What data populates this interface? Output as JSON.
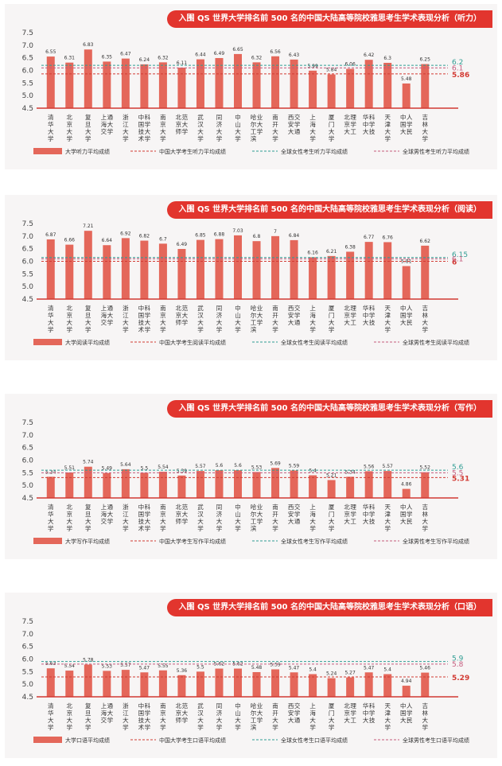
{
  "chart_data": [
    {
      "type": "bar",
      "title": "入围 QS 世界大学排名前 500 名的中国大陆高等院校雅思考生学术表现分析（听力）",
      "categories": [
        "清华大学",
        "北京大学",
        "复旦大学",
        "上海交通大学",
        "浙江大学",
        "中国科学技术大学",
        "南京大学",
        "北京师范大学",
        "武汉大学",
        "同济大学",
        "中山大学",
        "哈尔滨工业大学",
        "南开大学",
        "西安交通大学",
        "上海大学",
        "厦门大学",
        "北京理工大学",
        "华中科技大学",
        "天津大学",
        "中国人民大学",
        "吉林大学"
      ],
      "category_chars": [
        [
          "清",
          "华",
          "大",
          "学"
        ],
        [
          "北",
          "京",
          "大",
          "学"
        ],
        [
          "复",
          "旦",
          "大",
          "学"
        ],
        [
          "上",
          "海",
          "交",
          "通",
          "大",
          "学"
        ],
        [
          "浙",
          "江",
          "大",
          "学"
        ],
        [
          "中",
          "国",
          "技",
          "术",
          "科",
          "学",
          "大",
          "学"
        ],
        [
          "南",
          "京",
          "大",
          "学"
        ],
        [
          "北",
          "京",
          "师",
          "范",
          "大",
          "学"
        ],
        [
          "武",
          "汉",
          "大",
          "学"
        ],
        [
          "同",
          "济",
          "大",
          "学"
        ],
        [
          "中",
          "山",
          "大",
          "学"
        ],
        [
          "哈",
          "尔",
          "工",
          "滨",
          "业",
          "大",
          "学"
        ],
        [
          "南",
          "开",
          "大",
          "学"
        ],
        [
          "西",
          "安",
          "大",
          "交",
          "学",
          "通"
        ],
        [
          "上",
          "海",
          "大",
          "学"
        ],
        [
          "厦",
          "门",
          "大",
          "学"
        ],
        [
          "北",
          "京",
          "大",
          "理",
          "学",
          "工"
        ],
        [
          "华",
          "中",
          "大",
          "科",
          "学",
          "技"
        ],
        [
          "天",
          "津",
          "大",
          "学"
        ],
        [
          "中",
          "国",
          "大",
          "人",
          "学",
          "民"
        ],
        [
          "吉",
          "林",
          "大",
          "学"
        ]
      ],
      "series": [
        {
          "name": "大学听力平均成绩",
          "values": [
            6.55,
            6.31,
            6.83,
            6.35,
            6.47,
            6.24,
            6.32,
            6.11,
            6.44,
            6.49,
            6.65,
            6.32,
            6.56,
            6.43,
            5.99,
            5.84,
            6.06,
            6.42,
            6.3,
            5.48,
            6.25
          ]
        }
      ],
      "value_labels": [
        "6.55",
        "6.31",
        "6.83",
        "6.35",
        "6.47",
        "6.24",
        "6.32",
        "6.11",
        "6.44",
        "6.49",
        "6.65",
        "6.32",
        "6.56",
        "6.43",
        "5.99",
        "5.84",
        "6.06",
        "6.42",
        "6.3",
        "5.48",
        "6.25"
      ],
      "yticks": [
        "4.5",
        "5.0",
        "5.5",
        "6.0",
        "6.5",
        "7.0",
        "7.5"
      ],
      "ylim": [
        4.5,
        7.5
      ],
      "reference_lines": [
        {
          "name": "中国大学考生听力平均成绩",
          "value": 5.86,
          "label": "5.86",
          "color": "#d23a33"
        },
        {
          "name": "全球女性考生听力平均成绩",
          "value": 6.2,
          "label": "6.2",
          "color": "#2f9d93"
        },
        {
          "name": "全球男性考生听力平均成绩",
          "value": 6.1,
          "label": "6.1",
          "color": "#c45a7c"
        }
      ],
      "bar_color": "#e4675a",
      "axis_color": "#d23a33",
      "grid": false,
      "legend_position": "bottom"
    },
    {
      "type": "bar",
      "title": "入围 QS 世界大学排名前 500 名的中国大陆高等院校雅思考生学术表现分析（阅读）",
      "categories": [
        "清华大学",
        "北京大学",
        "复旦大学",
        "上海交通大学",
        "浙江大学",
        "中国科学技术大学",
        "南京大学",
        "北京师范大学",
        "武汉大学",
        "同济大学",
        "中山大学",
        "哈尔滨工业大学",
        "南开大学",
        "西安交通大学",
        "上海大学",
        "厦门大学",
        "北京理工大学",
        "华中科技大学",
        "天津大学",
        "中国人民大学",
        "吉林大学"
      ],
      "category_chars": [
        [
          "清",
          "华",
          "大",
          "学"
        ],
        [
          "北",
          "京",
          "大",
          "学"
        ],
        [
          "复",
          "旦",
          "大",
          "学"
        ],
        [
          "上",
          "海",
          "交",
          "通",
          "大",
          "学"
        ],
        [
          "浙",
          "江",
          "大",
          "学"
        ],
        [
          "中",
          "国",
          "技",
          "术",
          "科",
          "学",
          "大",
          "学"
        ],
        [
          "南",
          "京",
          "大",
          "学"
        ],
        [
          "北",
          "京",
          "师",
          "范",
          "大",
          "学"
        ],
        [
          "武",
          "汉",
          "大",
          "学"
        ],
        [
          "同",
          "济",
          "大",
          "学"
        ],
        [
          "中",
          "山",
          "大",
          "学"
        ],
        [
          "哈",
          "尔",
          "工",
          "滨",
          "业",
          "大",
          "学"
        ],
        [
          "南",
          "开",
          "大",
          "学"
        ],
        [
          "西",
          "安",
          "大",
          "交",
          "学",
          "通"
        ],
        [
          "上",
          "海",
          "大",
          "学"
        ],
        [
          "厦",
          "门",
          "大",
          "学"
        ],
        [
          "北",
          "京",
          "大",
          "理",
          "学",
          "工"
        ],
        [
          "华",
          "中",
          "大",
          "科",
          "学",
          "技"
        ],
        [
          "天",
          "津",
          "大",
          "学"
        ],
        [
          "中",
          "国",
          "大",
          "人",
          "学",
          "民"
        ],
        [
          "吉",
          "林",
          "大",
          "学"
        ]
      ],
      "series": [
        {
          "name": "大学阅读平均成绩",
          "values": [
            6.87,
            6.66,
            7.21,
            6.64,
            6.92,
            6.82,
            6.7,
            6.49,
            6.85,
            6.88,
            7.03,
            6.8,
            7,
            6.84,
            6.16,
            6.21,
            6.38,
            6.77,
            6.76,
            5.81,
            6.62
          ]
        }
      ],
      "value_labels": [
        "6.87",
        "6.66",
        "7.21",
        "6.64",
        "6.92",
        "6.82",
        "6.7",
        "6.49",
        "6.85",
        "6.88",
        "7.03",
        "6.8",
        "7",
        "6.84",
        "6.16",
        "6.21",
        "6.38",
        "6.77",
        "6.76",
        "5.81",
        "6.62"
      ],
      "yticks": [
        "4.5",
        "5.0",
        "5.5",
        "6.0",
        "6.5",
        "7.0",
        "7.5"
      ],
      "ylim": [
        4.5,
        7.5
      ],
      "reference_lines": [
        {
          "name": "中国大学考生阅读平均成绩",
          "value": 6,
          "label": "6",
          "color": "#d23a33"
        },
        {
          "name": "全球女性考生阅读平均成绩",
          "value": 6.15,
          "label": "6.15",
          "color": "#2f9d93"
        },
        {
          "name": "全球男性考生阅读平均成绩",
          "value": 6.1,
          "label": "6.1",
          "color": "#c45a7c"
        }
      ],
      "bar_color": "#e4675a",
      "axis_color": "#d23a33",
      "grid": false,
      "legend_position": "bottom"
    },
    {
      "type": "bar",
      "title": "入围 QS 世界大学排名前 500 名的中国大陆高等院校雅思考生学术表现分析（写作）",
      "categories": [
        "清华大学",
        "北京大学",
        "复旦大学",
        "上海交通大学",
        "浙江大学",
        "中国科学技术大学",
        "南京大学",
        "北京师范大学",
        "武汉大学",
        "同济大学",
        "中山大学",
        "哈尔滨工业大学",
        "南开大学",
        "西安交通大学",
        "上海大学",
        "厦门大学",
        "北京理工大学",
        "华中科技大学",
        "天津大学",
        "中国人民大学",
        "吉林大学"
      ],
      "category_chars": [
        [
          "清",
          "华",
          "大",
          "学"
        ],
        [
          "北",
          "京",
          "大",
          "学"
        ],
        [
          "复",
          "旦",
          "大",
          "学"
        ],
        [
          "上",
          "海",
          "交",
          "通",
          "大",
          "学"
        ],
        [
          "浙",
          "江",
          "大",
          "学"
        ],
        [
          "中",
          "国",
          "技",
          "术",
          "科",
          "学",
          "大",
          "学"
        ],
        [
          "南",
          "京",
          "大",
          "学"
        ],
        [
          "北",
          "京",
          "师",
          "范",
          "大",
          "学"
        ],
        [
          "武",
          "汉",
          "大",
          "学"
        ],
        [
          "同",
          "济",
          "大",
          "学"
        ],
        [
          "中",
          "山",
          "大",
          "学"
        ],
        [
          "哈",
          "尔",
          "工",
          "滨",
          "业",
          "大",
          "学"
        ],
        [
          "南",
          "开",
          "大",
          "学"
        ],
        [
          "西",
          "安",
          "大",
          "交",
          "学",
          "通"
        ],
        [
          "上",
          "海",
          "大",
          "学"
        ],
        [
          "厦",
          "门",
          "大",
          "学"
        ],
        [
          "北",
          "京",
          "大",
          "理",
          "学",
          "工"
        ],
        [
          "华",
          "中",
          "大",
          "科",
          "学",
          "技"
        ],
        [
          "天",
          "津",
          "大",
          "学"
        ],
        [
          "中",
          "国",
          "大",
          "人",
          "学",
          "民"
        ],
        [
          "吉",
          "林",
          "大",
          "学"
        ]
      ],
      "series": [
        {
          "name": "大学写作平均成绩",
          "values": [
            5.34,
            5.51,
            5.74,
            5.49,
            5.64,
            5.5,
            5.54,
            5.39,
            5.57,
            5.6,
            5.6,
            5.53,
            5.69,
            5.59,
            5.4,
            5.21,
            5.34,
            5.56,
            5.57,
            4.86,
            5.52
          ]
        }
      ],
      "value_labels": [
        "5.34",
        "5.51",
        "5.74",
        "5.49",
        "5.64",
        "5.5",
        "5.54",
        "5.39",
        "5.57",
        "5.6",
        "5.6",
        "5.53",
        "5.69",
        "5.59",
        "5.4",
        "5.21",
        "5.34",
        "5.56",
        "5.57",
        "4.86",
        "5.52"
      ],
      "yticks": [
        "4.5",
        "5.0",
        "5.5",
        "6.0",
        "6.5",
        "7.0",
        "7.5"
      ],
      "ylim": [
        4.5,
        7.5
      ],
      "reference_lines": [
        {
          "name": "中国大学考生写作平均成绩",
          "value": 5.31,
          "label": "5.31",
          "color": "#d23a33"
        },
        {
          "name": "全球女性考生写作平均成绩",
          "value": 5.6,
          "label": "5.6",
          "color": "#2f9d93"
        },
        {
          "name": "全球男性考生写作平均成绩",
          "value": 5.5,
          "label": "5.5",
          "color": "#c45a7c"
        }
      ],
      "bar_color": "#e4675a",
      "axis_color": "#d23a33",
      "grid": false,
      "legend_position": "bottom"
    },
    {
      "type": "bar",
      "title": "入围 QS 世界大学排名前 500 名的中国大陆高等院校雅思考生学术表现分析（口语）",
      "categories": [
        "清华大学",
        "北京大学",
        "复旦大学",
        "上海交通大学",
        "浙江大学",
        "中国科学技术大学",
        "南京大学",
        "北京师范大学",
        "武汉大学",
        "同济大学",
        "中山大学",
        "哈尔滨工业大学",
        "南开大学",
        "西安交通大学",
        "上海大学",
        "厦门大学",
        "北京理工大学",
        "华中科技大学",
        "天津大学",
        "中国人民大学",
        "吉林大学"
      ],
      "category_chars": [
        [
          "清",
          "华",
          "大",
          "学"
        ],
        [
          "北",
          "京",
          "大",
          "学"
        ],
        [
          "复",
          "旦",
          "大",
          "学"
        ],
        [
          "上",
          "海",
          "交",
          "通",
          "大",
          "学"
        ],
        [
          "浙",
          "江",
          "大",
          "学"
        ],
        [
          "中",
          "国",
          "技",
          "术",
          "科",
          "学",
          "大",
          "学"
        ],
        [
          "南",
          "京",
          "大",
          "学"
        ],
        [
          "北",
          "京",
          "师",
          "范",
          "大",
          "学"
        ],
        [
          "武",
          "汉",
          "大",
          "学"
        ],
        [
          "同",
          "济",
          "大",
          "学"
        ],
        [
          "中",
          "山",
          "大",
          "学"
        ],
        [
          "哈",
          "尔",
          "工",
          "滨",
          "业",
          "大",
          "学"
        ],
        [
          "南",
          "开",
          "大",
          "学"
        ],
        [
          "西",
          "安",
          "大",
          "交",
          "学",
          "通"
        ],
        [
          "上",
          "海",
          "大",
          "学"
        ],
        [
          "厦",
          "门",
          "大",
          "学"
        ],
        [
          "北",
          "京",
          "大",
          "理",
          "学",
          "工"
        ],
        [
          "华",
          "中",
          "大",
          "科",
          "学",
          "技"
        ],
        [
          "天",
          "津",
          "大",
          "学"
        ],
        [
          "中",
          "国",
          "大",
          "人",
          "学",
          "民"
        ],
        [
          "吉",
          "林",
          "大",
          "学"
        ]
      ],
      "series": [
        {
          "name": "大学口语平均成绩",
          "values": [
            5.63,
            5.54,
            5.78,
            5.53,
            5.57,
            5.47,
            5.55,
            5.36,
            5.5,
            5.62,
            5.62,
            5.48,
            5.59,
            5.47,
            5.4,
            5.24,
            5.27,
            5.47,
            5.4,
            4.94,
            5.46
          ]
        }
      ],
      "value_labels": [
        "5.63",
        "5.54",
        "5.78",
        "5.53",
        "5.57",
        "5.47",
        "5.55",
        "5.36",
        "5.5",
        "5.62",
        "5.62",
        "5.48",
        "5.59",
        "5.47",
        "5.4",
        "5.24",
        "5.27",
        "5.47",
        "5.4",
        "4.94",
        "5.46"
      ],
      "yticks": [
        "4.5",
        "5.0",
        "5.5",
        "6.0",
        "6.5",
        "7.0",
        "7.5"
      ],
      "ylim": [
        4.5,
        7.5
      ],
      "reference_lines": [
        {
          "name": "中国大学考生口语平均成绩",
          "value": 5.29,
          "label": "5.29",
          "color": "#d23a33"
        },
        {
          "name": "全球女性考生口语平均成绩",
          "value": 5.9,
          "label": "5.9",
          "color": "#2f9d93"
        },
        {
          "name": "全球男性考生口语平均成绩",
          "value": 5.8,
          "label": "5.8",
          "color": "#c45a7c"
        }
      ],
      "bar_color": "#e4675a",
      "axis_color": "#d23a33",
      "grid": false,
      "legend_position": "bottom"
    }
  ]
}
